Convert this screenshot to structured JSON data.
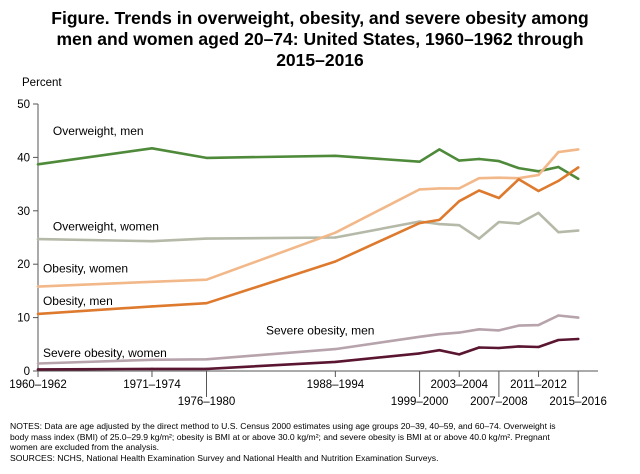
{
  "title_lines": [
    "Figure. Trends in overweight, obesity, and severe obesity among",
    "men and women aged 20–74: United States, 1960–1962 through",
    "2015–2016"
  ],
  "notes_lines": [
    "NOTES: Data are age adjusted by the direct method to U.S. Census 2000 estimates using age groups 20–39, 40–59, and 60–74. Overweight is",
    "body mass index (BMI) of 25.0–29.9 kg/m²; obesity is BMI at or above 30.0 kg/m²; and severe obesity is BMI at or above 40.0 kg/m². Pregnant",
    "women are excluded from the analysis.",
    "SOURCES: NCHS, National Health Examination Survey and National Health and Nutrition Examination Surveys."
  ],
  "chart_data": {
    "type": "line",
    "title": "Figure. Trends in overweight, obesity, and severe obesity among men and women aged 20–74: United States, 1960–1962 through 2015–2016",
    "ylabel": "Percent",
    "xlabel": "",
    "ylim": [
      0,
      50
    ],
    "yticks": [
      0,
      10,
      20,
      30,
      40,
      50
    ],
    "grid": false,
    "legend": "inline labels",
    "x": [
      1961,
      1972.5,
      1978,
      1991,
      1999.5,
      2001.5,
      2003.5,
      2005.5,
      2007.5,
      2009.5,
      2011.5,
      2013.5,
      2015.5
    ],
    "xtick_labels": [
      {
        "x": 1961,
        "label": "1960–1962",
        "row": 1
      },
      {
        "x": 1972.5,
        "label": "1971–1974",
        "row": 1
      },
      {
        "x": 1978,
        "label": "1976–1980",
        "row": 2
      },
      {
        "x": 1991,
        "label": "1988–1994",
        "row": 1
      },
      {
        "x": 1999.5,
        "label": "1999–2000",
        "row": 2
      },
      {
        "x": 2003.5,
        "label": "2003–2004",
        "row": 1
      },
      {
        "x": 2007.5,
        "label": "2007–2008",
        "row": 2
      },
      {
        "x": 2011.5,
        "label": "2011–2012",
        "row": 1
      },
      {
        "x": 2015.5,
        "label": "2015–2016",
        "row": 2
      }
    ],
    "series": [
      {
        "name": "Overweight, men",
        "color": "#4e8a3a",
        "values": [
          38.7,
          41.7,
          39.9,
          40.3,
          39.2,
          41.5,
          39.4,
          39.7,
          39.3,
          38.0,
          37.4,
          38.2,
          36.0
        ],
        "label_pos": {
          "x": 1962.5,
          "y": 44.2
        }
      },
      {
        "name": "Overweight, women",
        "color": "#b5b9a8",
        "values": [
          24.7,
          24.3,
          24.8,
          25.0,
          28.0,
          27.5,
          27.3,
          24.8,
          27.9,
          27.6,
          29.6,
          26.0,
          26.3
        ],
        "label_pos": {
          "x": 1962.5,
          "y": 26.3
        }
      },
      {
        "name": "Obesity, women",
        "color": "#f2b889",
        "values": [
          15.8,
          16.7,
          17.1,
          25.9,
          34.0,
          34.2,
          34.2,
          36.1,
          36.2,
          36.1,
          36.7,
          41.0,
          41.5
        ],
        "label_pos": {
          "x": 1961.5,
          "y": 18.4
        }
      },
      {
        "name": "Obesity, men",
        "color": "#de7a2e",
        "values": [
          10.7,
          12.1,
          12.7,
          20.5,
          27.7,
          28.3,
          31.8,
          33.8,
          32.4,
          35.9,
          33.7,
          35.6,
          38.1
        ],
        "label_pos": {
          "x": 1961.5,
          "y": 12.4
        }
      },
      {
        "name": "Severe obesity, men",
        "color": "#5a1530",
        "values": [
          0.3,
          0.4,
          0.4,
          1.7,
          3.3,
          3.9,
          3.1,
          4.4,
          4.3,
          4.6,
          4.5,
          5.8,
          6.0
        ],
        "label_pos": {
          "x": 1984,
          "y": 6.8
        }
      },
      {
        "name": "Severe obesity, women",
        "color": "#b7a3ab",
        "values": [
          1.4,
          2.1,
          2.2,
          4.1,
          6.4,
          6.9,
          7.2,
          7.8,
          7.6,
          8.5,
          8.6,
          10.4,
          10.0
        ],
        "label_pos": {
          "x": 1961.5,
          "y": 2.6
        }
      }
    ]
  }
}
